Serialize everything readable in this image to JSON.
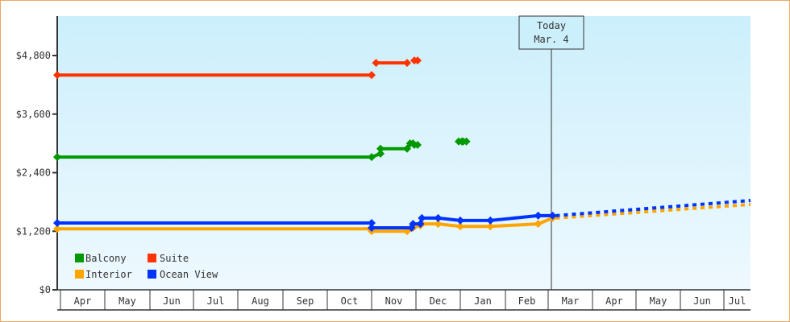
{
  "chart_data": {
    "type": "line",
    "title": "",
    "xlabel": "",
    "ylabel": "",
    "ylim": [
      0,
      5600
    ],
    "yticks": [
      "$0",
      "$1,200",
      "$2,400",
      "$3,600",
      "$4,800"
    ],
    "ytick_values": [
      0,
      1200,
      2400,
      3600,
      4800
    ],
    "months": [
      "Apr",
      "May",
      "Jun",
      "Jul",
      "Aug",
      "Sep",
      "Oct",
      "Nov",
      "Dec",
      "Jan",
      "Feb",
      "Mar",
      "Apr",
      "May",
      "Jun",
      "Jul"
    ],
    "today_marker": {
      "line1": "Today",
      "line2": "Mar. 4"
    },
    "legend": [
      {
        "name": "Balcony",
        "color": "#009900"
      },
      {
        "name": "Suite",
        "color": "#ff3300"
      },
      {
        "name": "Interior",
        "color": "#ffa500"
      },
      {
        "name": "Ocean View",
        "color": "#0033ff"
      }
    ],
    "series": [
      {
        "name": "Suite",
        "color": "#ff3300",
        "segments": [
          [
            [
              "Apr 1",
              4400
            ],
            [
              "Nov 1",
              4400
            ]
          ],
          [
            [
              "Nov 4",
              4650
            ],
            [
              "Nov 25",
              4650
            ]
          ]
        ],
        "points": [
          [
            "Dec 1",
            4700
          ]
        ]
      },
      {
        "name": "Balcony",
        "color": "#009900",
        "segments": [
          [
            [
              "Apr 1",
              2720
            ],
            [
              "Nov 1",
              2720
            ],
            [
              "Nov 7",
              2790
            ],
            [
              "Nov 7",
              2890
            ],
            [
              "Nov 25",
              2890
            ],
            [
              "Nov 27",
              3000
            ],
            [
              "Nov 29",
              3000
            ]
          ]
        ],
        "points": [
          [
            "Dec 1",
            2970
          ],
          [
            "Jan 1",
            3040
          ],
          [
            "Jan 4",
            3040
          ]
        ]
      },
      {
        "name": "Ocean View",
        "color": "#0033ff",
        "segments": [
          [
            [
              "Apr 1",
              1370
            ],
            [
              "Nov 1",
              1370
            ],
            [
              "Nov 1",
              1270
            ],
            [
              "Nov 28",
              1270
            ],
            [
              "Nov 29",
              1350
            ],
            [
              "Dec 4",
              1350
            ],
            [
              "Dec 5",
              1470
            ],
            [
              "Dec 16",
              1470
            ],
            [
              "Jan 1",
              1420
            ],
            [
              "Jan 21",
              1420
            ],
            [
              "Feb 24",
              1520
            ],
            [
              "Mar 4",
              1520
            ]
          ]
        ],
        "projection": [
          [
            "Mar 4",
            1520
          ],
          [
            "Jul 15",
            1830
          ]
        ]
      },
      {
        "name": "Interior",
        "color": "#ffa500",
        "segments": [
          [
            [
              "Apr 1",
              1250
            ],
            [
              "Nov 1",
              1250
            ],
            [
              "Nov 1",
              1200
            ],
            [
              "Nov 25",
              1200
            ],
            [
              "Nov 29",
              1270
            ],
            [
              "Dec 4",
              1320
            ],
            [
              "Dec 5",
              1350
            ],
            [
              "Dec 16",
              1350
            ],
            [
              "Jan 1",
              1300
            ],
            [
              "Jan 21",
              1300
            ],
            [
              "Feb 24",
              1350
            ],
            [
              "Mar 4",
              1470
            ]
          ]
        ],
        "projection": [
          [
            "Mar 4",
            1470
          ],
          [
            "Jul 15",
            1750
          ]
        ]
      }
    ]
  },
  "colors": {
    "frame_border": "#e8a860",
    "plot_bg_top": "#cceffc",
    "plot_bg_bottom": "#eef9fe",
    "axis": "#333333"
  }
}
